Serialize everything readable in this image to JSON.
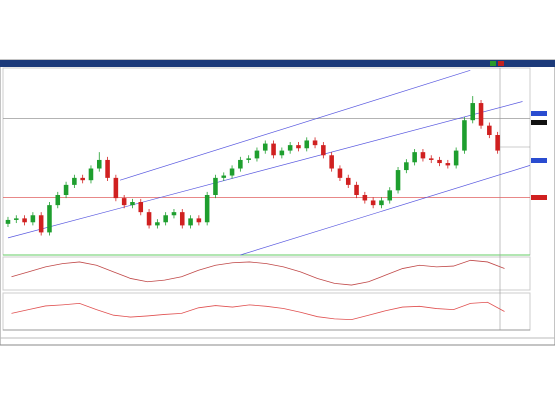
{
  "chart_data": [
    {
      "type": "candlestick",
      "open": [
        0.96,
        0.965,
        0.967,
        0.962,
        0.971,
        0.949,
        0.984,
        0.997,
        1.01,
        1.019,
        1.016,
        1.031,
        1.042,
        1.019,
        0.993,
        0.984,
        0.988,
        0.975,
        0.958,
        0.962,
        0.971,
        0.975,
        0.958,
        0.967,
        0.962,
        0.997,
        1.019,
        1.022,
        1.031,
        1.042,
        1.044,
        1.054,
        1.063,
        1.048,
        1.054,
        1.061,
        1.057,
        1.067,
        1.061,
        1.048,
        1.031,
        1.019,
        1.01,
        0.997,
        0.99,
        0.984,
        0.99,
        1.003,
        1.029,
        1.039,
        1.052,
        1.044,
        1.042,
        1.038,
        1.035,
        1.054,
        1.093,
        1.115,
        1.086,
        1.074
      ],
      "high": [
        0.969,
        0.971,
        0.971,
        0.975,
        0.975,
        0.988,
        1.001,
        1.014,
        1.023,
        1.023,
        1.035,
        1.052,
        1.046,
        1.023,
        0.997,
        0.992,
        0.992,
        0.979,
        0.966,
        0.975,
        0.979,
        0.979,
        0.971,
        0.971,
        1.001,
        1.023,
        1.026,
        1.035,
        1.046,
        1.048,
        1.058,
        1.067,
        1.067,
        1.058,
        1.065,
        1.065,
        1.071,
        1.071,
        1.065,
        1.052,
        1.035,
        1.023,
        1.014,
        1.001,
        0.994,
        0.994,
        1.007,
        1.033,
        1.043,
        1.056,
        1.056,
        1.048,
        1.046,
        1.042,
        1.058,
        1.097,
        1.124,
        1.119,
        1.09,
        1.078
      ],
      "low": [
        0.956,
        0.961,
        0.958,
        0.958,
        0.945,
        0.945,
        0.98,
        0.993,
        1.006,
        1.012,
        1.012,
        1.027,
        1.015,
        0.989,
        0.98,
        0.98,
        0.971,
        0.954,
        0.954,
        0.958,
        0.967,
        0.954,
        0.954,
        0.958,
        0.958,
        0.993,
        1.015,
        1.018,
        1.027,
        1.038,
        1.04,
        1.05,
        1.044,
        1.044,
        1.05,
        1.053,
        1.053,
        1.057,
        1.044,
        1.027,
        1.015,
        1.006,
        0.993,
        0.986,
        0.98,
        0.98,
        0.986,
        0.999,
        1.025,
        1.035,
        1.04,
        1.038,
        1.034,
        1.031,
        1.031,
        1.05,
        1.089,
        1.082,
        1.07,
        1.05
      ],
      "close": [
        0.965,
        0.967,
        0.962,
        0.971,
        0.949,
        0.984,
        0.997,
        1.01,
        1.019,
        1.016,
        1.031,
        1.042,
        1.019,
        0.993,
        0.984,
        0.988,
        0.975,
        0.958,
        0.962,
        0.971,
        0.975,
        0.958,
        0.967,
        0.962,
        0.997,
        1.019,
        1.022,
        1.031,
        1.042,
        1.044,
        1.054,
        1.063,
        1.048,
        1.054,
        1.061,
        1.057,
        1.067,
        1.061,
        1.048,
        1.031,
        1.019,
        1.01,
        0.997,
        0.99,
        0.984,
        0.99,
        1.003,
        1.029,
        1.039,
        1.052,
        1.044,
        1.042,
        1.038,
        1.035,
        1.054,
        1.093,
        1.115,
        1.086,
        1.074,
        1.054
      ],
      "up_color": "#1e9e2e",
      "down_color": "#d02020",
      "xlim": [
        -0.6,
        62.9
      ],
      "ylim": [
        0.92,
        1.16
      ],
      "levels": [
        {
          "value": 1.095,
          "color": "#9a9a9a"
        },
        {
          "value": 0.994,
          "color": "#e06060"
        }
      ],
      "trendlines": [
        {
          "x": [
            0,
            62
          ],
          "values": [
            0.942,
            1.117
          ],
          "color": "#5a5ae0"
        },
        {
          "x": [
            13.5,
            55.7
          ],
          "values": [
            1.016,
            1.157
          ],
          "color": "#5a5ae0"
        },
        {
          "x": [
            28,
            62.9
          ],
          "values": [
            0.92,
            1.035
          ],
          "color": "#5a5ae0"
        }
      ]
    },
    {
      "type": "line",
      "xlim": [
        -0.5,
        30.5
      ],
      "ylim": [
        -0.02,
        0.02
      ],
      "series": [
        {
          "color": "#c04848",
          "values": [
            -0.004,
            0.002,
            0.008,
            0.012,
            0.014,
            0.01,
            0.002,
            -0.006,
            -0.01,
            -0.008,
            -0.004,
            0.004,
            0.01,
            0.013,
            0.014,
            0.012,
            0.008,
            0.002,
            -0.006,
            -0.012,
            -0.014,
            -0.01,
            -0.002,
            0.006,
            0.01,
            0.008,
            0.009,
            0.016,
            0.014,
            0.006
          ]
        }
      ]
    },
    {
      "type": "line",
      "xlim": [
        -0.5,
        30.5
      ],
      "ylim": [
        0,
        100
      ],
      "series": [
        {
          "color": "#e05050",
          "values": [
            45,
            55,
            65,
            68,
            72,
            55,
            40,
            35,
            38,
            42,
            45,
            60,
            66,
            62,
            68,
            64,
            58,
            48,
            36,
            30,
            28,
            40,
            52,
            62,
            64,
            58,
            55,
            72,
            75,
            50
          ]
        }
      ]
    }
  ]
}
